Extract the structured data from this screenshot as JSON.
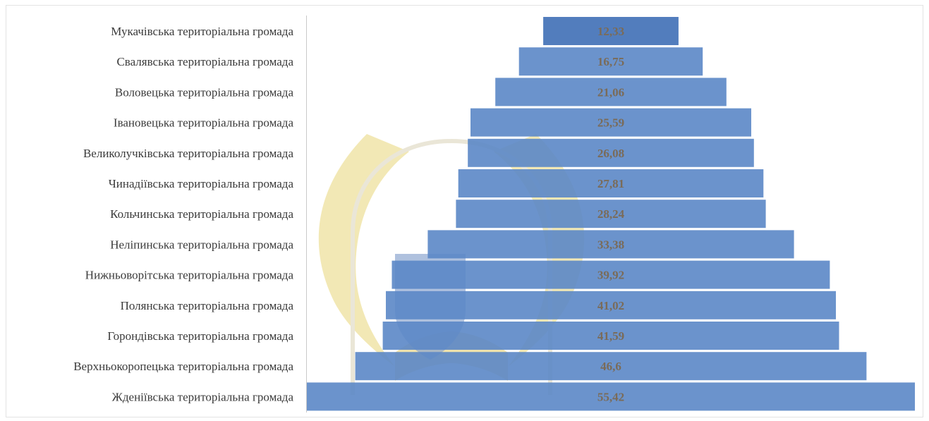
{
  "chart_data": {
    "type": "bar",
    "orientation": "horizontal-centered",
    "categories": [
      "Мукачівська територіальна громада",
      "Свалявська територіальна громада",
      "Воловецька територіальна громада",
      "Івановецька територіальна громада",
      "Великолучківська територіальна громада",
      "Чинадіївська територіальна громада",
      "Кольчинська територіальна громада",
      "Неліпинська територіальна громада",
      "Нижньоворітська територіальна громада",
      "Полянська територіальна громада",
      "Горондівська територіальна громада",
      "Верхньокоропецька територіальна громада",
      "Жденіївська територіальна громада"
    ],
    "values": [
      12.33,
      16.75,
      21.06,
      25.59,
      26.08,
      27.81,
      28.24,
      33.38,
      39.92,
      41.02,
      41.59,
      46.6,
      55.42
    ],
    "value_labels": [
      "12,33",
      "16,75",
      "21,06",
      "25,59",
      "26,08",
      "27,81",
      "28,24",
      "33,38",
      "39,92",
      "41,02",
      "41,59",
      "46,6",
      "55,42"
    ],
    "bar_color": "#5b87c6",
    "bar_color_dark": "#3f6fb6",
    "label_color": "#7a6b58",
    "title": "",
    "xlabel": "",
    "ylabel": "",
    "grid": false,
    "legend": "none"
  }
}
